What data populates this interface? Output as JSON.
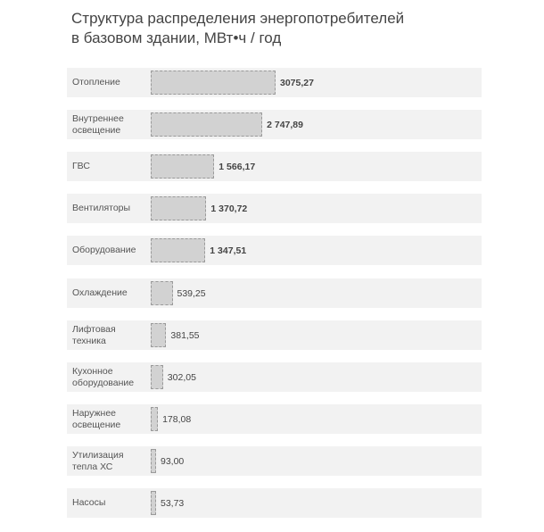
{
  "chart_data": {
    "type": "bar",
    "orientation": "horizontal",
    "title": "Структура  распределения энергопотребителей в базовом здании, МВт•ч / год",
    "title_lines": [
      "Структура  распределения энергопотребителей",
      "в базовом здании, МВт•ч / год"
    ],
    "categories": [
      "Отопление",
      "Внутреннее освещение",
      "ГВС",
      "Вентиляторы",
      "Оборудование",
      "Охлаждение",
      "Лифтовая техника",
      "Кухонное оборудование",
      "Наружнее освещение",
      "Утилизация тепла ХС",
      "Насосы"
    ],
    "label_lines": [
      [
        "Отопление"
      ],
      [
        "Внутреннее",
        "освещение"
      ],
      [
        "ГВС"
      ],
      [
        "Вентиляторы"
      ],
      [
        "Оборудование"
      ],
      [
        "Охлаждение"
      ],
      [
        "Лифтовая",
        "техника"
      ],
      [
        "Кухонное",
        "оборудование"
      ],
      [
        "Наружнее",
        "освещение"
      ],
      [
        "Утилизация",
        "тепла ХС"
      ],
      [
        "Насосы"
      ]
    ],
    "values": [
      3075.27,
      2747.89,
      1566.17,
      1370.72,
      1347.51,
      539.25,
      381.55,
      302.05,
      178.08,
      93.0,
      53.73
    ],
    "value_labels": [
      "3075,27",
      "2 747,89",
      "1 566,17",
      "1 370,72",
      "1 347,51",
      "539,25",
      "381,55",
      "302,05",
      "178,08",
      "93,00",
      "53,73"
    ],
    "bold_value_labels": [
      true,
      true,
      true,
      true,
      true,
      false,
      false,
      false,
      false,
      false,
      false
    ],
    "xlim": [
      0,
      3075.27
    ],
    "grid": false,
    "legend": "none"
  },
  "colors": {
    "bar_fill": "#d2d2d2",
    "bar_border": "#9a9a9a",
    "row_background": "#f2f2f2",
    "text": "#555555"
  }
}
